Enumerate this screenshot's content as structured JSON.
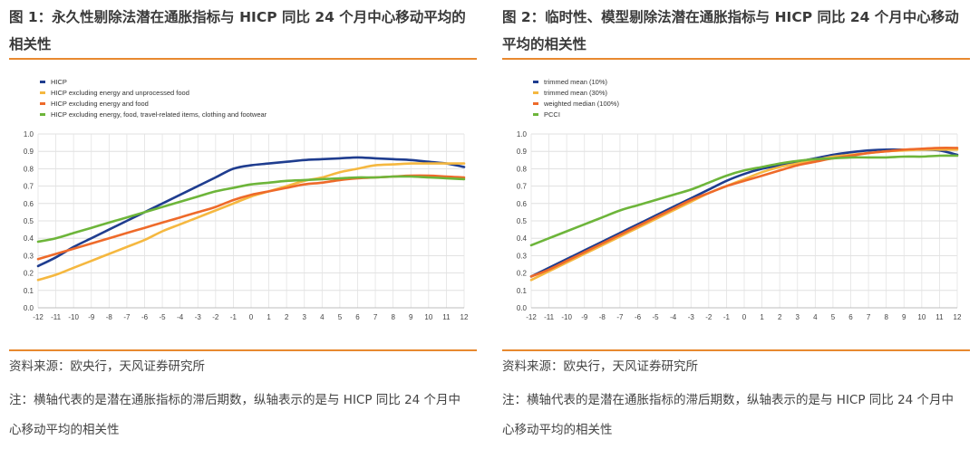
{
  "panels": [
    {
      "title": "图 1：永久性剔除法潜在通胀指标与 HICP 同比 24 个月中心移动平均的相关性",
      "source": "资料来源：欧央行，天风证券研究所",
      "note": "注：横轴代表的是潜在通胀指标的滞后期数，纵轴表示的是与 HICP 同比 24 个月中心移动平均的相关性"
    },
    {
      "title": "图 2：临时性、模型剔除法潜在通胀指标与 HICP 同比 24 个月中心移动平均的相关性",
      "source": "资料来源：欧央行，天风证券研究所",
      "note": "注：横轴代表的是潜在通胀指标的滞后期数，纵轴表示的是与 HICP 同比 24 个月中心移动平均的相关性"
    }
  ],
  "chart_data": [
    {
      "type": "line",
      "title": "图 1：永久性剔除法潜在通胀指标与 HICP 同比 24 个月中心移动平均的相关性",
      "x": [
        -12,
        -11,
        -10,
        -9,
        -8,
        -7,
        -6,
        -5,
        -4,
        -3,
        -2,
        -1,
        0,
        1,
        2,
        3,
        4,
        5,
        6,
        7,
        8,
        9,
        10,
        11,
        12
      ],
      "xlim": [
        -12,
        12
      ],
      "ylim": [
        0,
        1
      ],
      "yticks": [
        "0.0",
        "0.1",
        "0.2",
        "0.3",
        "0.4",
        "0.5",
        "0.6",
        "0.7",
        "0.8",
        "0.9",
        "1.0"
      ],
      "grid": true,
      "legend": "top-left",
      "series": [
        {
          "name": "HICP",
          "color": "#1f3d8f",
          "values": [
            0.24,
            0.29,
            0.35,
            0.4,
            0.45,
            0.5,
            0.55,
            0.6,
            0.65,
            0.7,
            0.75,
            0.8,
            0.82,
            0.83,
            0.84,
            0.85,
            0.855,
            0.86,
            0.865,
            0.86,
            0.855,
            0.85,
            0.84,
            0.83,
            0.81
          ]
        },
        {
          "name": "HICP excluding energy and unprocessed food",
          "color": "#f5b840",
          "values": [
            0.16,
            0.19,
            0.23,
            0.27,
            0.31,
            0.35,
            0.39,
            0.44,
            0.48,
            0.52,
            0.56,
            0.6,
            0.64,
            0.67,
            0.7,
            0.73,
            0.75,
            0.78,
            0.8,
            0.82,
            0.825,
            0.83,
            0.83,
            0.83,
            0.83
          ]
        },
        {
          "name": "HICP excluding energy and food",
          "color": "#ee6a2a",
          "values": [
            0.28,
            0.31,
            0.34,
            0.37,
            0.4,
            0.43,
            0.46,
            0.49,
            0.52,
            0.55,
            0.58,
            0.62,
            0.65,
            0.67,
            0.69,
            0.71,
            0.72,
            0.735,
            0.745,
            0.75,
            0.755,
            0.76,
            0.76,
            0.755,
            0.75
          ]
        },
        {
          "name": "HICP excluding energy, food, travel-related items, clothing and footwear",
          "color": "#6db53a",
          "values": [
            0.38,
            0.4,
            0.43,
            0.46,
            0.49,
            0.52,
            0.55,
            0.58,
            0.61,
            0.64,
            0.67,
            0.69,
            0.71,
            0.72,
            0.73,
            0.735,
            0.74,
            0.745,
            0.75,
            0.75,
            0.755,
            0.755,
            0.75,
            0.745,
            0.74
          ]
        }
      ]
    },
    {
      "type": "line",
      "title": "图 2：临时性、模型剔除法潜在通胀指标与 HICP 同比 24 个月中心移动平均的相关性",
      "x": [
        -12,
        -11,
        -10,
        -9,
        -8,
        -7,
        -6,
        -5,
        -4,
        -3,
        -2,
        -1,
        0,
        1,
        2,
        3,
        4,
        5,
        6,
        7,
        8,
        9,
        10,
        11,
        12
      ],
      "xlim": [
        -12,
        12
      ],
      "ylim": [
        0,
        1
      ],
      "yticks": [
        "0.0",
        "0.1",
        "0.2",
        "0.3",
        "0.4",
        "0.5",
        "0.6",
        "0.7",
        "0.8",
        "0.9",
        "1.0"
      ],
      "grid": true,
      "legend": "top-left",
      "series": [
        {
          "name": "trimmed mean (10%)",
          "color": "#1f3d8f",
          "values": [
            0.18,
            0.23,
            0.28,
            0.33,
            0.38,
            0.43,
            0.48,
            0.53,
            0.58,
            0.63,
            0.68,
            0.73,
            0.77,
            0.8,
            0.82,
            0.84,
            0.86,
            0.88,
            0.895,
            0.905,
            0.91,
            0.91,
            0.91,
            0.905,
            0.88
          ]
        },
        {
          "name": "trimmed mean (30%)",
          "color": "#f5b840",
          "values": [
            0.16,
            0.21,
            0.26,
            0.31,
            0.36,
            0.41,
            0.46,
            0.51,
            0.56,
            0.61,
            0.66,
            0.7,
            0.74,
            0.78,
            0.81,
            0.83,
            0.85,
            0.87,
            0.88,
            0.89,
            0.9,
            0.905,
            0.91,
            0.91,
            0.91
          ]
        },
        {
          "name": "weighted median (100%)",
          "color": "#ee6a2a",
          "values": [
            0.18,
            0.22,
            0.27,
            0.32,
            0.37,
            0.42,
            0.47,
            0.52,
            0.57,
            0.62,
            0.66,
            0.7,
            0.73,
            0.76,
            0.79,
            0.82,
            0.84,
            0.86,
            0.875,
            0.89,
            0.9,
            0.91,
            0.915,
            0.92,
            0.92
          ]
        },
        {
          "name": "PCCI",
          "color": "#6db53a",
          "values": [
            0.36,
            0.4,
            0.44,
            0.48,
            0.52,
            0.56,
            0.59,
            0.62,
            0.65,
            0.68,
            0.72,
            0.76,
            0.79,
            0.81,
            0.83,
            0.845,
            0.855,
            0.86,
            0.865,
            0.865,
            0.865,
            0.87,
            0.87,
            0.875,
            0.875
          ]
        }
      ]
    }
  ]
}
